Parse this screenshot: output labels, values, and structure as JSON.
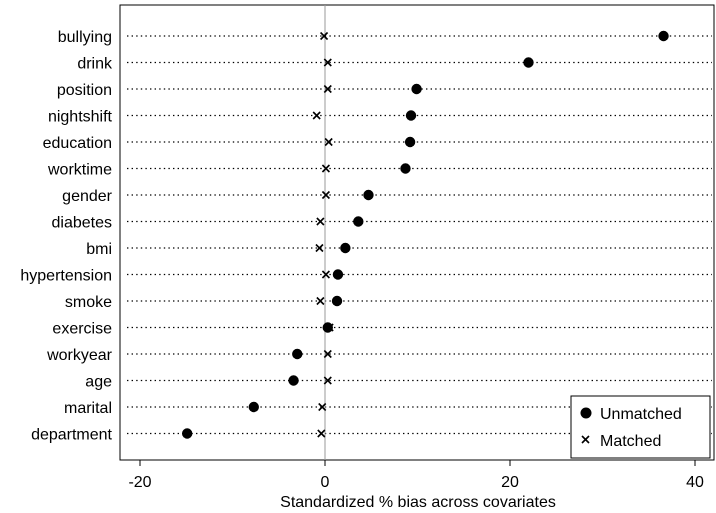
{
  "chart_data": {
    "type": "scatter",
    "xlabel": "Standardized % bias across covariates",
    "xlim": [
      -22,
      42
    ],
    "xticks": [
      -20,
      0,
      20,
      40
    ],
    "zero_line": 0,
    "legend_position": "bottom-right",
    "categories": [
      "bullying",
      "drink",
      "position",
      "nightshift",
      "education",
      "worktime",
      "gender",
      "diabetes",
      "bmi",
      "hypertension",
      "smoke",
      "exercise",
      "workyear",
      "age",
      "marital",
      "department"
    ],
    "series": [
      {
        "name": "Unmatched",
        "marker": "filled-circle",
        "values": [
          36.6,
          22.0,
          9.9,
          9.3,
          9.2,
          8.7,
          4.7,
          3.6,
          2.2,
          1.4,
          1.3,
          0.3,
          -3.0,
          -3.4,
          -7.7,
          -14.9
        ]
      },
      {
        "name": "Matched",
        "marker": "x",
        "values": [
          -0.1,
          0.3,
          0.3,
          -0.9,
          0.4,
          0.1,
          0.1,
          -0.5,
          -0.6,
          0.1,
          -0.5,
          0.5,
          0.3,
          0.3,
          -0.3,
          -0.4
        ]
      }
    ],
    "colors": {
      "unmatched": "#000000",
      "matched": "#000000",
      "guide": "#000000",
      "zero_line": "#9a9a9a"
    }
  }
}
